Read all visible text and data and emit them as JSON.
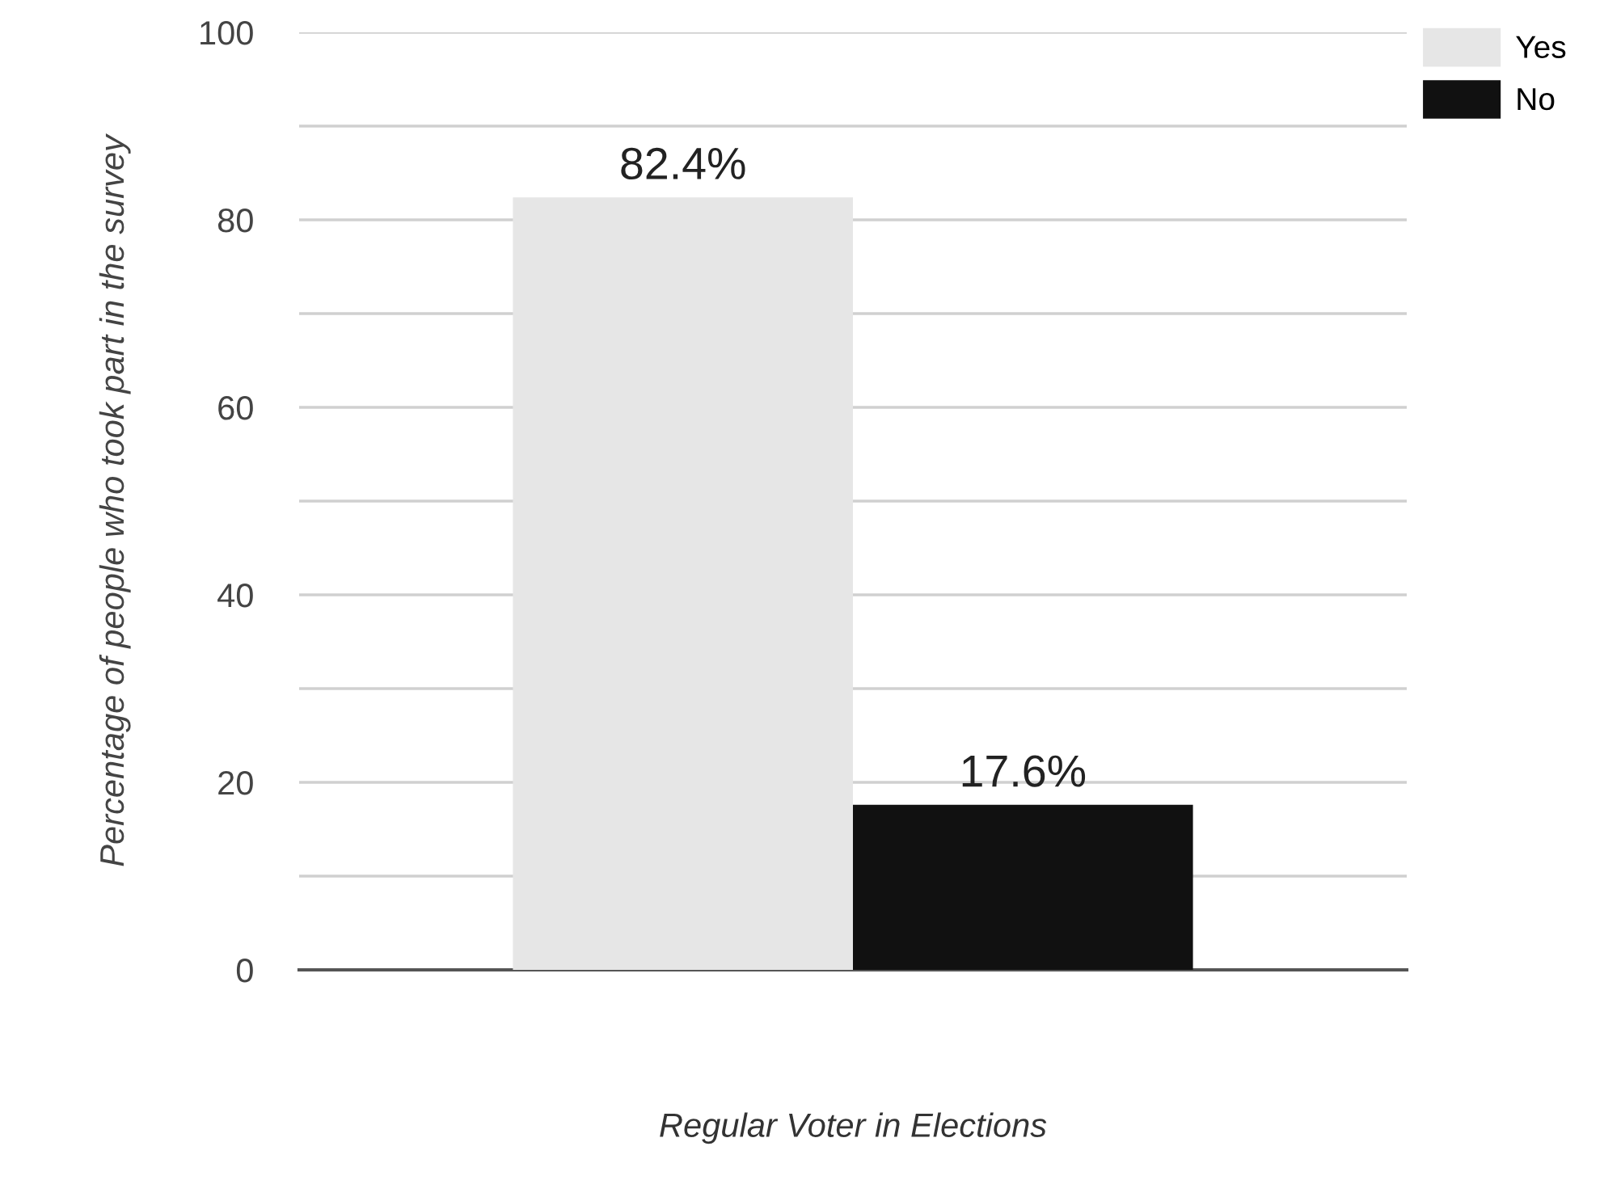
{
  "chart_data": {
    "type": "bar",
    "xlabel": "Regular Voter in Elections",
    "ylabel": "Percentage of people who took part in the survey",
    "categories": [
      null
    ],
    "series": [
      {
        "name": "Yes",
        "color": "#e6e6e6",
        "values": [
          82.4
        ],
        "value_labels": [
          "82.4%"
        ]
      },
      {
        "name": "No",
        "color": "#111111",
        "values": [
          17.6
        ],
        "value_labels": [
          "17.6%"
        ]
      }
    ],
    "ylim": [
      0,
      100
    ],
    "yticks": [
      0,
      {
        "value": 10,
        "label": null
      },
      20,
      {
        "value": 30,
        "label": null
      },
      40,
      {
        "value": 50,
        "label": null
      },
      60,
      {
        "value": 70,
        "label": null
      },
      80,
      {
        "value": 90,
        "label": null
      },
      100
    ],
    "grid": "y",
    "legend": "top right"
  }
}
